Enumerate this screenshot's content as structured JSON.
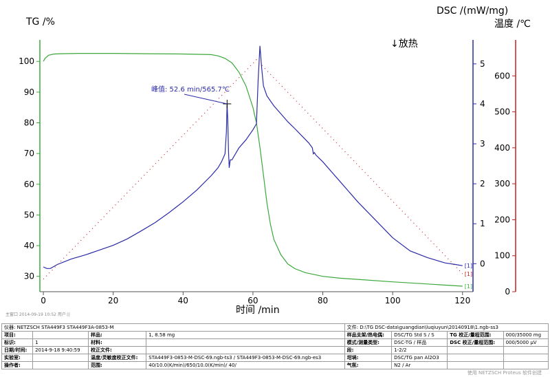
{
  "chart_data": {
    "type": "line",
    "xlabel": "时间 /min",
    "xlim": [
      -1,
      123
    ],
    "x_ticks": [
      0,
      20,
      40,
      60,
      80,
      100,
      120
    ],
    "axes": {
      "tg": {
        "label": "TG /%",
        "ylim": [
          25,
          107
        ],
        "ticks": [
          30,
          40,
          50,
          60,
          70,
          80,
          90,
          100
        ],
        "color": "#3aa83a"
      },
      "dsc": {
        "label": "DSC /(mW/mg)",
        "ylim": [
          -0.7,
          5.6
        ],
        "ticks": [
          0,
          1,
          2,
          3,
          4,
          5
        ],
        "color": "#2a2aa8"
      },
      "temp": {
        "label": "温度 /℃",
        "ylim": [
          0,
          700
        ],
        "ticks": [
          0,
          100,
          200,
          300,
          400,
          500,
          600
        ],
        "color": "#c02020"
      }
    },
    "exo_label": "↓放热",
    "annotation": {
      "text": "峰值: 52.6 min/565.7℃",
      "x": 52.6,
      "dsc_y": 4.0
    },
    "series": [
      {
        "axis": "tg",
        "color": "#3aa83a",
        "end_label": "[1]",
        "x": [
          0,
          0.5,
          1.5,
          3,
          5,
          10,
          20,
          30,
          40,
          48,
          50,
          52,
          54,
          56,
          58,
          60,
          61,
          62,
          63,
          64,
          65,
          66,
          68,
          70,
          72,
          75,
          80,
          85,
          90,
          100,
          110,
          120
        ],
        "y": [
          100,
          101,
          102,
          102.4,
          102.5,
          102.6,
          102.6,
          102.5,
          102.4,
          102.2,
          101.8,
          101,
          99.5,
          96.5,
          92,
          85,
          80,
          72,
          63,
          54,
          47,
          42,
          37,
          34,
          32.5,
          31.2,
          30,
          29.4,
          29,
          28.2,
          27.5,
          26.8
        ]
      },
      {
        "axis": "dsc",
        "color": "#2a2aa8",
        "end_label": "[1]",
        "x": [
          0,
          1,
          2,
          4,
          8,
          12,
          16,
          20,
          24,
          28,
          32,
          36,
          40,
          44,
          48,
          50,
          51,
          52,
          52.4,
          52.6,
          52.8,
          53,
          53.2,
          53.5,
          54,
          56,
          58,
          60,
          61,
          61.5,
          62,
          62.5,
          63,
          64,
          66,
          68,
          70,
          72,
          74,
          76,
          77,
          77.3,
          77.6,
          78,
          80,
          85,
          90,
          95,
          100,
          105,
          110,
          115,
          118,
          120
        ],
        "y": [
          -0.08,
          -0.12,
          -0.12,
          -0.02,
          0.12,
          0.22,
          0.34,
          0.46,
          0.62,
          0.82,
          1.03,
          1.28,
          1.55,
          1.85,
          2.2,
          2.4,
          2.55,
          2.75,
          3.3,
          4.0,
          3.6,
          2.8,
          2.4,
          2.6,
          2.6,
          2.9,
          3.1,
          3.35,
          3.5,
          4.6,
          5.45,
          4.9,
          4.45,
          4.2,
          3.95,
          3.75,
          3.55,
          3.38,
          3.2,
          3.02,
          2.9,
          2.75,
          2.78,
          2.72,
          2.55,
          2.05,
          1.55,
          1.1,
          0.65,
          0.32,
          0.15,
          0.02,
          -0.02,
          -0.05
        ]
      },
      {
        "axis": "temp",
        "color": "#c02020",
        "style": "dotted",
        "end_label": "[1]",
        "x": [
          0,
          61,
          120
        ],
        "y": [
          35,
          645,
          50
        ]
      }
    ]
  },
  "footer": {
    "meta": "主窗口   2014-09-19 10:52   用户:||",
    "instrument_key": "仪器:",
    "instrument_val": "NETZSCH STA449F3 STA449F3A-0853-M",
    "file_key": "文件:",
    "file_val": "D:\\TG DSC-data\\guangdian\\luqiuyun\\20140918\\1.ngb-ss3",
    "rows": [
      [
        "项目:",
        "",
        "样品:",
        "1, 8.58 mg",
        "样品支架/热电偶:",
        "DSC/TG Std S / S",
        "TG 校正/量程范围:",
        "000/35000 mg"
      ],
      [
        "标识:",
        "1",
        "材料:",
        "",
        "模式/测量类型:",
        "DSC-TG / 样品",
        "DSC 校正/量程范围:",
        "000/5000 µV"
      ],
      [
        "日期/时间:",
        "2014-9-18 9:40:59",
        "校正文件:",
        "",
        "段:",
        "1-2/2",
        "",
        ""
      ],
      [
        "实验室:",
        "",
        "温度/灵敏度校正文件:",
        "STA449F3-0853-M-DSC-69.ngb-ts3 / STA449F3-0853-M-DSC-69.ngb-es3",
        "坩埚:",
        "DSC/TG pan Al2O3",
        "",
        ""
      ],
      [
        "操作者:",
        "",
        "范围:",
        "40/10.0(K/min)/650/10.0(K/min)/ 40/",
        "气氛:",
        "N2 / Ar",
        "",
        ""
      ]
    ],
    "brand": "使用 NETZSCH Proteus 软件创建"
  }
}
